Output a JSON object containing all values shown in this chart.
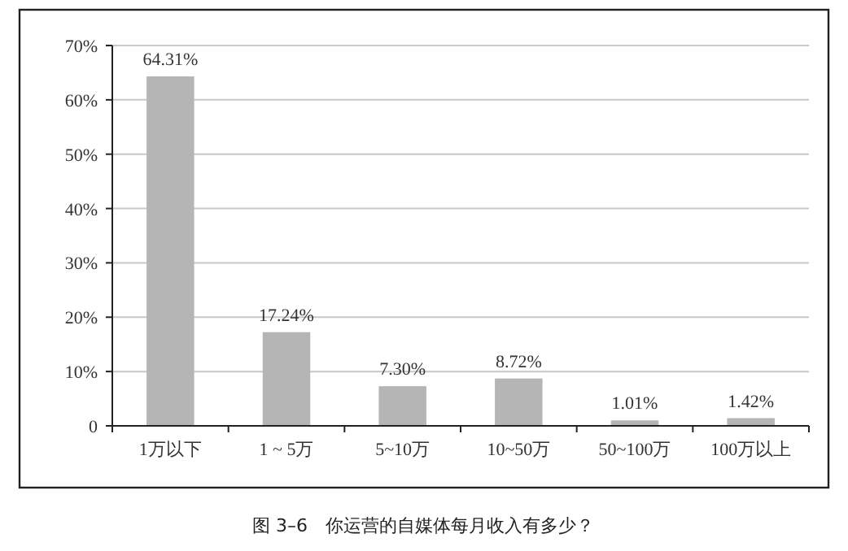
{
  "chart_data": {
    "type": "bar",
    "title": "图 3–6　你运营的自媒体每月收入有多少？",
    "categories": [
      "1万以下",
      "1 ~ 5万",
      "5~10万",
      "10~50万",
      "50~100万",
      "100万以上"
    ],
    "values": [
      64.31,
      17.24,
      7.3,
      8.72,
      1.01,
      1.42
    ],
    "value_labels": [
      "64.31%",
      "17.24%",
      "7.30%",
      "8.72%",
      "1.01%",
      "1.42%"
    ],
    "color": "#b5b5b5",
    "ylim": [
      0,
      70
    ],
    "yticks": [
      {
        "value": 0,
        "label": "0"
      },
      {
        "value": 10,
        "label": "10%"
      },
      {
        "value": 20,
        "label": "20%"
      },
      {
        "value": 30,
        "label": "30%"
      },
      {
        "value": 40,
        "label": "40%"
      },
      {
        "value": 50,
        "label": "50%"
      },
      {
        "value": 60,
        "label": "60%"
      },
      {
        "value": 70,
        "label": "70%"
      }
    ],
    "grid": "y"
  }
}
